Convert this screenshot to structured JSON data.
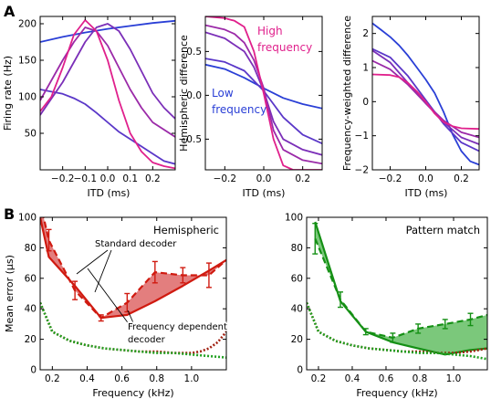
{
  "figure": {
    "panel_labels": [
      "A",
      "B"
    ]
  },
  "chart_data": [
    {
      "type": "line",
      "panel": "A",
      "xlabel": "ITD (ms)",
      "ylabel": "Firing rate (Hz)",
      "xlim": [
        -0.3,
        0.3
      ],
      "ylim": [
        0,
        210
      ],
      "xticks": [
        -0.2,
        -0.1,
        0.0,
        0.1,
        0.2
      ],
      "xtick_labels": [
        "−0.2",
        "−0.1",
        "0.0",
        "0.1",
        "0.2"
      ],
      "yticks": [
        50,
        100,
        150,
        200
      ],
      "ytick_labels": [
        "50",
        "100",
        "150",
        "200"
      ],
      "grid": false,
      "series": [
        {
          "color": "#2a3fd6",
          "x": [
            -0.3,
            -0.2,
            -0.1,
            0.0,
            0.1,
            0.2,
            0.3
          ],
          "y": [
            175,
            182,
            188,
            193,
            197,
            201,
            204
          ]
        },
        {
          "color": "#5a37c8",
          "x": [
            -0.3,
            -0.2,
            -0.15,
            -0.1,
            -0.05,
            0.0,
            0.05,
            0.1,
            0.15,
            0.2,
            0.25,
            0.3
          ],
          "y": [
            110,
            104,
            98,
            90,
            78,
            65,
            52,
            42,
            32,
            22,
            12,
            8
          ]
        },
        {
          "color": "#7b2fb8",
          "x": [
            -0.3,
            -0.2,
            -0.1,
            -0.05,
            0.0,
            0.05,
            0.1,
            0.15,
            0.2,
            0.25,
            0.3
          ],
          "y": [
            75,
            120,
            175,
            195,
            200,
            190,
            165,
            135,
            105,
            85,
            70
          ]
        },
        {
          "color": "#9b2aa8",
          "x": [
            -0.3,
            -0.2,
            -0.15,
            -0.1,
            -0.05,
            0.0,
            0.05,
            0.1,
            0.15,
            0.2,
            0.3
          ],
          "y": [
            95,
            150,
            175,
            195,
            190,
            170,
            140,
            110,
            85,
            65,
            45
          ]
        },
        {
          "color": "#e0208c",
          "x": [
            -0.3,
            -0.25,
            -0.2,
            -0.15,
            -0.1,
            -0.05,
            0.0,
            0.05,
            0.1,
            0.15,
            0.2,
            0.25,
            0.3
          ],
          "y": [
            80,
            100,
            140,
            185,
            205,
            190,
            150,
            95,
            50,
            25,
            10,
            5,
            2
          ]
        }
      ]
    },
    {
      "type": "line",
      "panel": "A",
      "xlabel": "ITD (ms)",
      "ylabel": "Hemispheric difference",
      "xlim": [
        -0.3,
        0.3
      ],
      "ylim": [
        -0.85,
        0.9
      ],
      "xticks": [
        -0.2,
        0.0,
        0.2
      ],
      "xtick_labels": [
        "−0.2",
        "0.0",
        "0.2"
      ],
      "yticks": [
        -0.5,
        0.0,
        0.5
      ],
      "ytick_labels": [
        "−0.5",
        "0.0",
        "0.5"
      ],
      "grid": false,
      "annotations": [
        {
          "text": "High",
          "color": "#e0208c"
        },
        {
          "text": "frequency",
          "color": "#e0208c"
        },
        {
          "text": "Low",
          "color": "#2a3fd6"
        },
        {
          "text": "frequency",
          "color": "#2a3fd6"
        }
      ],
      "series": [
        {
          "color": "#2a3fd6",
          "x": [
            -0.3,
            -0.2,
            -0.1,
            0.0,
            0.1,
            0.2,
            0.3
          ],
          "y": [
            0.35,
            0.3,
            0.2,
            0.08,
            -0.03,
            -0.1,
            -0.15
          ]
        },
        {
          "color": "#5a37c8",
          "x": [
            -0.3,
            -0.2,
            -0.1,
            0.0,
            0.1,
            0.2,
            0.3
          ],
          "y": [
            0.42,
            0.38,
            0.28,
            0.05,
            -0.25,
            -0.45,
            -0.55
          ]
        },
        {
          "color": "#7b2fb8",
          "x": [
            -0.3,
            -0.2,
            -0.1,
            -0.05,
            0.0,
            0.05,
            0.1,
            0.2,
            0.3
          ],
          "y": [
            0.72,
            0.65,
            0.5,
            0.32,
            0.05,
            -0.3,
            -0.5,
            -0.62,
            -0.68
          ]
        },
        {
          "color": "#9b2aa8",
          "x": [
            -0.3,
            -0.2,
            -0.15,
            -0.1,
            -0.05,
            0.0,
            0.05,
            0.1,
            0.2,
            0.3
          ],
          "y": [
            0.8,
            0.75,
            0.7,
            0.6,
            0.4,
            0.08,
            -0.4,
            -0.62,
            -0.74,
            -0.78
          ]
        },
        {
          "color": "#e0208c",
          "x": [
            -0.3,
            -0.2,
            -0.15,
            -0.1,
            -0.05,
            0.0,
            0.05,
            0.1,
            0.15,
            0.2,
            0.3
          ],
          "y": [
            0.9,
            0.88,
            0.85,
            0.78,
            0.5,
            0.02,
            -0.5,
            -0.8,
            -0.85,
            -0.85,
            -0.85
          ]
        }
      ]
    },
    {
      "type": "line",
      "panel": "A",
      "xlabel": "ITD (ms)",
      "ylabel": "Frequency-weighted difference",
      "xlim": [
        -0.3,
        0.3
      ],
      "ylim": [
        -2.0,
        2.5
      ],
      "xticks": [
        -0.2,
        0.0,
        0.2
      ],
      "xtick_labels": [
        "−0.2",
        "0.0",
        "0.2"
      ],
      "yticks": [
        -2,
        -1,
        0,
        1,
        2
      ],
      "ytick_labels": [
        "−2",
        "−1",
        "0",
        "1",
        "2"
      ],
      "grid": false,
      "series": [
        {
          "color": "#2a3fd6",
          "x": [
            -0.3,
            -0.25,
            -0.2,
            -0.15,
            -0.1,
            -0.05,
            0.0,
            0.05,
            0.1,
            0.15,
            0.2,
            0.25,
            0.3
          ],
          "y": [
            2.3,
            2.1,
            1.9,
            1.65,
            1.35,
            1.0,
            0.65,
            0.25,
            -0.3,
            -0.95,
            -1.45,
            -1.75,
            -1.85
          ]
        },
        {
          "color": "#5a37c8",
          "x": [
            -0.3,
            -0.2,
            -0.1,
            0.0,
            0.1,
            0.2,
            0.3
          ],
          "y": [
            1.55,
            1.3,
            0.75,
            0.05,
            -0.65,
            -1.2,
            -1.45
          ]
        },
        {
          "color": "#7b2fb8",
          "x": [
            -0.3,
            -0.2,
            -0.1,
            0.0,
            0.1,
            0.2,
            0.3
          ],
          "y": [
            1.5,
            1.15,
            0.55,
            -0.05,
            -0.6,
            -1.05,
            -1.25
          ]
        },
        {
          "color": "#9b2aa8",
          "x": [
            -0.3,
            -0.2,
            -0.1,
            0.0,
            0.1,
            0.2,
            0.3
          ],
          "y": [
            1.2,
            0.95,
            0.5,
            -0.05,
            -0.55,
            -0.9,
            -1.05
          ]
        },
        {
          "color": "#e0208c",
          "x": [
            -0.3,
            -0.2,
            -0.15,
            -0.1,
            -0.05,
            0.0,
            0.05,
            0.1,
            0.15,
            0.2,
            0.3
          ],
          "y": [
            0.8,
            0.78,
            0.72,
            0.55,
            0.3,
            0.0,
            -0.35,
            -0.6,
            -0.72,
            -0.78,
            -0.8
          ]
        }
      ]
    },
    {
      "type": "line",
      "panel": "B",
      "title": "Hemispheric",
      "xlabel": "Frequency (kHz)",
      "ylabel": "Mean error (μs)",
      "xlim": [
        0.13,
        1.2
      ],
      "ylim": [
        0,
        100
      ],
      "xticks": [
        0.2,
        0.4,
        0.6,
        0.8,
        1.0
      ],
      "xtick_labels": [
        "0.2",
        "0.4",
        "0.6",
        "0.8",
        "1.0"
      ],
      "yticks": [
        0,
        20,
        40,
        60,
        80,
        100
      ],
      "ytick_labels": [
        "0",
        "20",
        "40",
        "60",
        "80",
        "100"
      ],
      "grid": false,
      "annotations": [
        {
          "text": "Standard decoder"
        },
        {
          "text": "Frequency dependent"
        },
        {
          "text": "decoder"
        }
      ],
      "fill_color": "#e07070",
      "series": [
        {
          "style": "dashed",
          "color": "#d01a10",
          "x": [
            0.13,
            0.18,
            0.33,
            0.48,
            0.63,
            0.79,
            0.95,
            1.1,
            1.2
          ],
          "y": [
            110,
            85,
            52,
            34,
            44,
            64,
            62,
            62,
            72
          ],
          "errors": [
            0,
            7,
            6,
            2,
            6,
            7,
            5,
            8,
            0
          ]
        },
        {
          "style": "solid",
          "color": "#d01a10",
          "x": [
            0.13,
            0.18,
            0.33,
            0.48,
            0.63,
            0.79,
            0.95,
            1.1,
            1.2
          ],
          "y": [
            100,
            74,
            55,
            34,
            36,
            45,
            55,
            65,
            72
          ]
        },
        {
          "style": "dotted",
          "color": "#a02010",
          "x": [
            0.13,
            0.2,
            0.3,
            0.4,
            0.5,
            0.6,
            0.7,
            0.8,
            0.9,
            1.0,
            1.05,
            1.1,
            1.15,
            1.2
          ],
          "y": [
            44,
            25,
            19,
            16,
            14,
            13,
            12,
            12,
            11,
            11,
            12,
            14,
            18,
            25
          ]
        },
        {
          "style": "dotted",
          "color": "#20a020",
          "x": [
            0.13,
            0.2,
            0.3,
            0.4,
            0.5,
            0.6,
            0.7,
            0.8,
            0.9,
            1.0,
            1.1,
            1.2
          ],
          "y": [
            44,
            25,
            19,
            16,
            14,
            13,
            12,
            11,
            11,
            10,
            9,
            8
          ]
        }
      ]
    },
    {
      "type": "line",
      "panel": "B",
      "title": "Pattern match",
      "xlabel": "Frequency (kHz)",
      "xlim": [
        0.13,
        1.2
      ],
      "ylim": [
        0,
        100
      ],
      "xticks": [
        0.2,
        0.4,
        0.6,
        0.8,
        1.0
      ],
      "xtick_labels": [
        "0.2",
        "0.4",
        "0.6",
        "0.8",
        "1.0"
      ],
      "yticks": [
        0,
        20,
        40,
        60,
        80,
        100
      ],
      "ytick_labels": [
        "0",
        "20",
        "40",
        "60",
        "80",
        "100"
      ],
      "grid": false,
      "fill_color": "#6dc26d",
      "series": [
        {
          "style": "dashed",
          "color": "#159015",
          "x": [
            0.18,
            0.33,
            0.48,
            0.64,
            0.79,
            0.95,
            1.1,
            1.2
          ],
          "y": [
            86,
            46,
            25,
            21,
            27,
            30,
            33,
            36
          ],
          "errors": [
            10,
            5,
            2,
            3,
            3,
            3,
            4,
            0
          ]
        },
        {
          "style": "solid",
          "color": "#159015",
          "x": [
            0.18,
            0.33,
            0.48,
            0.64,
            0.79,
            0.95,
            1.1,
            1.2
          ],
          "y": [
            97,
            45,
            25,
            18,
            14,
            10,
            13,
            14
          ]
        },
        {
          "style": "dotted",
          "color": "#a02010",
          "x": [
            0.13,
            0.2,
            0.3,
            0.4,
            0.5,
            0.6,
            0.7,
            0.8,
            0.9,
            1.0,
            1.1,
            1.2
          ],
          "y": [
            44,
            25,
            19,
            16,
            14,
            13,
            12,
            12,
            11,
            11,
            12,
            14
          ]
        },
        {
          "style": "dotted",
          "color": "#20a020",
          "x": [
            0.13,
            0.2,
            0.3,
            0.4,
            0.5,
            0.6,
            0.7,
            0.8,
            0.9,
            1.0,
            1.1,
            1.2
          ],
          "y": [
            44,
            25,
            19,
            16,
            14,
            13,
            12,
            11,
            11,
            10,
            9,
            7
          ]
        }
      ]
    }
  ]
}
